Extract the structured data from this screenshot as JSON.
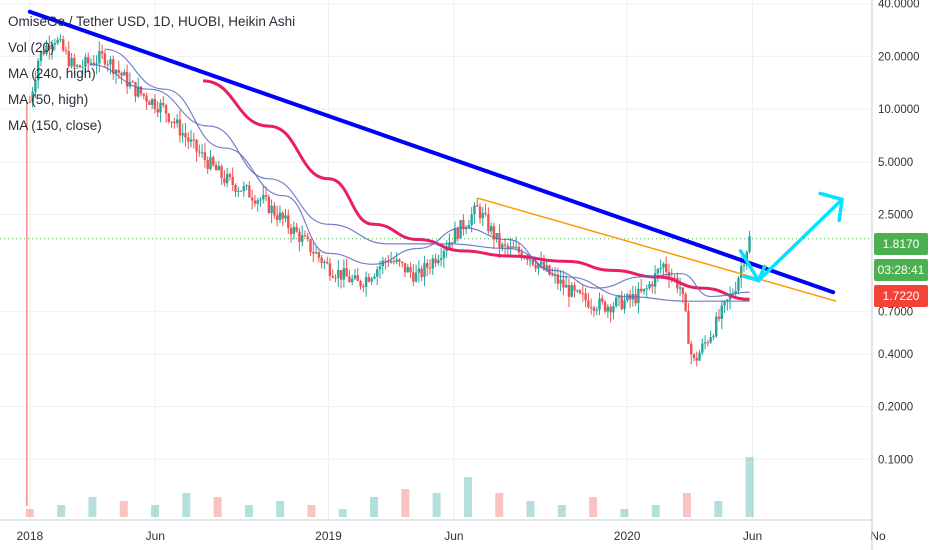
{
  "legend": {
    "symbol": "OmiseGo / Tether USD, 1D, HUOBI, Heikin Ashi",
    "vol": "Vol (20)",
    "ma240": "MA (240, high)",
    "ma50": "MA (50, high)",
    "ma150": "MA (150, close)"
  },
  "badges": {
    "last_price": "1.8170",
    "countdown": "03:28:41",
    "ma_price": "1.7220"
  },
  "colors": {
    "up": "#26a69a",
    "down": "#ef5350",
    "trendline": "#0000ff",
    "support_line": "#ff9800",
    "ma150": "#e91e63",
    "ma_blue": "#5c6bc0",
    "arrow": "#00e5ff",
    "badge_green": "#4caf50",
    "badge_red": "#f44336"
  },
  "chart_data": {
    "type": "candlestick",
    "y_scale": "log",
    "ylim": [
      0.045,
      42
    ],
    "y_ticks": [
      "40.0000",
      "20.0000",
      "10.0000",
      "5.0000",
      "2.5000",
      "0.7000",
      "0.4000",
      "0.2000",
      "0.1000"
    ],
    "x_ticks": [
      "2018",
      "Jun",
      "2019",
      "Jun",
      "2020",
      "Jun",
      "No"
    ],
    "series": [
      {
        "name": "OMG/USDT",
        "points": [
          [
            2018.0,
            11
          ],
          [
            2018.03,
            20
          ],
          [
            2018.08,
            26
          ],
          [
            2018.15,
            17
          ],
          [
            2018.25,
            20
          ],
          [
            2018.35,
            13
          ],
          [
            2018.45,
            10
          ],
          [
            2018.55,
            6
          ],
          [
            2018.65,
            4
          ],
          [
            2018.78,
            3
          ],
          [
            2018.9,
            1.9
          ],
          [
            2019.0,
            1.25
          ],
          [
            2019.1,
            1.0
          ],
          [
            2019.2,
            1.4
          ],
          [
            2019.3,
            1.1
          ],
          [
            2019.42,
            1.9
          ],
          [
            2019.5,
            2.7
          ],
          [
            2019.58,
            1.6
          ],
          [
            2019.66,
            1.5
          ],
          [
            2019.75,
            1.1
          ],
          [
            2019.83,
            0.85
          ],
          [
            2019.92,
            0.75
          ],
          [
            2020.0,
            0.8
          ],
          [
            2020.06,
            0.9
          ],
          [
            2020.12,
            1.3
          ],
          [
            2020.18,
            0.95
          ],
          [
            2020.22,
            0.35
          ],
          [
            2020.3,
            0.6
          ],
          [
            2020.36,
            0.95
          ],
          [
            2020.41,
            1.82
          ]
        ]
      }
    ],
    "moving_averages": [
      {
        "name": "MA (150, close)",
        "points": [
          [
            2018.58,
            14.5
          ],
          [
            2018.8,
            8
          ],
          [
            2019.0,
            4
          ],
          [
            2019.15,
            2.2
          ],
          [
            2019.3,
            1.8
          ],
          [
            2019.45,
            1.55
          ],
          [
            2019.6,
            1.45
          ],
          [
            2019.8,
            1.35
          ],
          [
            2019.95,
            1.2
          ],
          [
            2020.1,
            1.1
          ],
          [
            2020.25,
            0.95
          ],
          [
            2020.41,
            0.82
          ]
        ]
      },
      {
        "name": "MA (50, high)",
        "points": [
          [
            2018.25,
            22
          ],
          [
            2018.45,
            13
          ],
          [
            2018.65,
            6
          ],
          [
            2018.85,
            3.2
          ],
          [
            2019.0,
            1.5
          ],
          [
            2019.15,
            1.3
          ],
          [
            2019.3,
            1.6
          ],
          [
            2019.45,
            2.1
          ],
          [
            2019.6,
            1.8
          ],
          [
            2019.75,
            1.2
          ],
          [
            2019.9,
            0.95
          ],
          [
            2020.05,
            1.1
          ],
          [
            2020.18,
            1.15
          ],
          [
            2020.28,
            0.85
          ],
          [
            2020.41,
            0.9
          ]
        ]
      },
      {
        "name": "MA (240, high)",
        "points": [
          [
            2018.2,
            18
          ],
          [
            2018.4,
            13
          ],
          [
            2018.6,
            8
          ],
          [
            2018.8,
            4
          ],
          [
            2019.0,
            2.2
          ],
          [
            2019.2,
            1.7
          ],
          [
            2019.4,
            1.7
          ],
          [
            2019.6,
            1.6
          ],
          [
            2019.8,
            1.1
          ],
          [
            2020.0,
            0.85
          ],
          [
            2020.2,
            0.8
          ],
          [
            2020.41,
            0.8
          ]
        ]
      }
    ],
    "annotations": {
      "trendline": [
        [
          2018.0,
          36
        ],
        [
          2020.69,
          0.9
        ]
      ],
      "support_line": [
        [
          2019.5,
          3.1
        ],
        [
          2020.7,
          0.8
        ]
      ],
      "last_price_line": 1.817
    },
    "volume": [
      0.2,
      0.3,
      0.5,
      0.4,
      0.3,
      0.6,
      0.5,
      0.3,
      0.4,
      0.3,
      0.2,
      0.5,
      0.7,
      0.6,
      1.0,
      0.6,
      0.4,
      0.3,
      0.5,
      0.2,
      0.3,
      0.6,
      0.4,
      1.5
    ]
  }
}
